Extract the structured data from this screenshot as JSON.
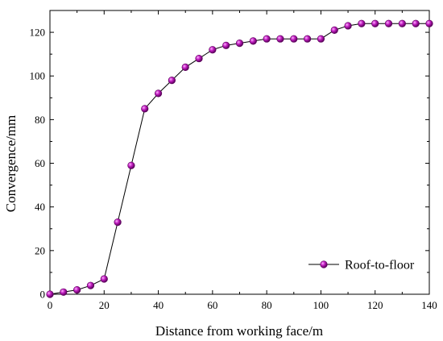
{
  "chart_data": {
    "type": "line",
    "xlabel": "Distance from working face/m",
    "ylabel": "Convergence/mm",
    "xlim": [
      0,
      140
    ],
    "ylim": [
      0,
      130
    ],
    "xticks": [
      0,
      20,
      40,
      60,
      80,
      100,
      120,
      140
    ],
    "yticks": [
      0,
      20,
      40,
      60,
      80,
      100,
      120
    ],
    "grid": false,
    "legend_position": "bottom-right",
    "series": [
      {
        "name": "Roof-to-floor",
        "color": "#9a0a9a",
        "marker": "circle",
        "x": [
          0,
          5,
          10,
          15,
          20,
          25,
          30,
          35,
          40,
          45,
          50,
          55,
          60,
          65,
          70,
          75,
          80,
          85,
          90,
          95,
          100,
          105,
          110,
          115,
          120,
          125,
          130,
          135,
          140
        ],
        "y": [
          0,
          1,
          2,
          4,
          7,
          33,
          59,
          85,
          92,
          98,
          104,
          108,
          112,
          114,
          115,
          116,
          117,
          117,
          117,
          117,
          117,
          121,
          123,
          124,
          124,
          124,
          124,
          124,
          124
        ]
      }
    ]
  }
}
